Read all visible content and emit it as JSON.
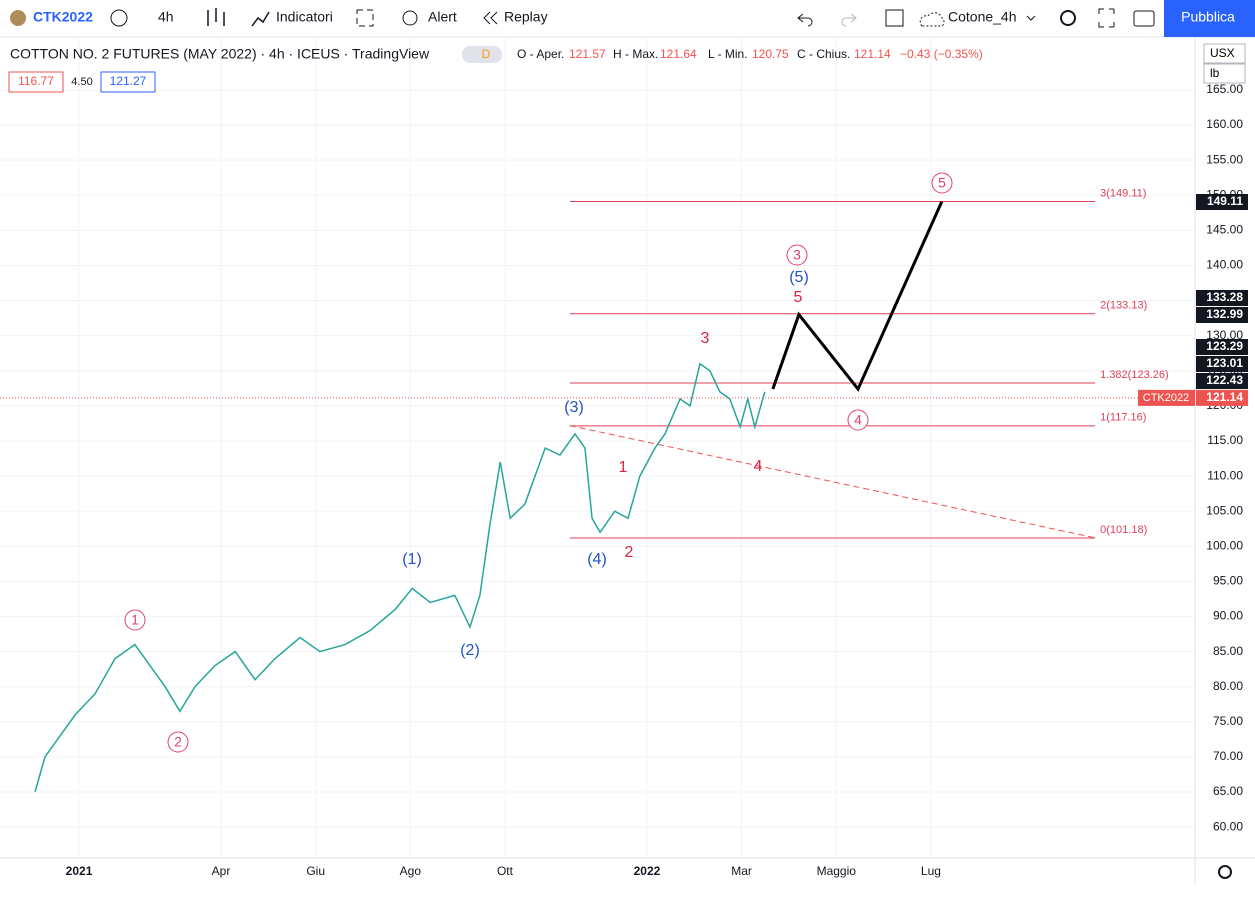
{
  "toolbar": {
    "symbol": "CTK2022",
    "interval": "4h",
    "indicators": "Indicatori",
    "alert": "Alert",
    "replay": "Replay",
    "layout": "Cotone_4h",
    "publish": "Pubblica"
  },
  "legend": {
    "title": "COTTON NO. 2 FUTURES (MAY 2022) · 4h · ICEUS · TradingView",
    "badge": "D",
    "open_label": "O - Aper.",
    "open": "121.57",
    "high_label": "H - Max.",
    "high": "121.64",
    "low_label": "L - Min.",
    "low": "120.75",
    "close_label": "C - Chius.",
    "close": "121.14",
    "change": "−0.43 (−0.35%)",
    "bid": "116.77",
    "spread": "4.50",
    "ask": "121.27"
  },
  "axis": {
    "currency": "USX",
    "unit": "lb",
    "symbol_tag": "CTK2022"
  },
  "chart": {
    "xlim": [
      -1.67,
      23.58
    ],
    "ylim": [
      55.6,
      172.4
    ],
    "xticks": [
      {
        "value": 0,
        "label": "2021"
      },
      {
        "value": 3,
        "label": "Apr"
      },
      {
        "value": 5,
        "label": "Giu"
      },
      {
        "value": 7,
        "label": "Ago"
      },
      {
        "value": 9,
        "label": "Ott"
      },
      {
        "value": 12,
        "label": "2022"
      },
      {
        "value": 14,
        "label": "Mar"
      },
      {
        "value": 16,
        "label": "Maggio"
      },
      {
        "value": 18,
        "label": "Lug"
      }
    ],
    "yticks": [
      {
        "value": 60,
        "label": "60.00"
      },
      {
        "value": 65,
        "label": "65.00"
      },
      {
        "value": 70,
        "label": "70.00"
      },
      {
        "value": 75,
        "label": "75.00"
      },
      {
        "value": 80,
        "label": "80.00"
      },
      {
        "value": 85,
        "label": "85.00"
      },
      {
        "value": 90,
        "label": "90.00"
      },
      {
        "value": 95,
        "label": "95.00"
      },
      {
        "value": 100,
        "label": "100.00"
      },
      {
        "value": 105,
        "label": "105.00"
      },
      {
        "value": 110,
        "label": "110.00"
      },
      {
        "value": 115,
        "label": "115.00"
      },
      {
        "value": 120,
        "label": "120.00"
      },
      {
        "value": 125,
        "label": "125.00"
      },
      {
        "value": 130,
        "label": "130.00"
      },
      {
        "value": 135,
        "label": "135.00"
      },
      {
        "value": 140,
        "label": "140.00"
      },
      {
        "value": 145,
        "label": "145.00"
      },
      {
        "value": 150,
        "label": "150.00"
      },
      {
        "value": 155,
        "label": "155.00"
      },
      {
        "value": 160,
        "label": "160.00"
      },
      {
        "value": 165,
        "label": "165.00"
      }
    ],
    "price": {
      "x": [
        -0.93,
        -0.72,
        -0.4,
        -0.08,
        0.34,
        0.76,
        1.18,
        1.5,
        1.82,
        2.13,
        2.45,
        2.87,
        3.3,
        3.72,
        4.14,
        4.67,
        5.09,
        5.62,
        6.15,
        6.68,
        7.04,
        7.42,
        7.94,
        8.26,
        8.47,
        8.68,
        8.9,
        9.11,
        9.42,
        9.85,
        10.16,
        10.48,
        10.69,
        10.84,
        11.01,
        11.32,
        11.6,
        11.85,
        12.17,
        12.38,
        12.7,
        12.91,
        13.12,
        13.33,
        13.54,
        13.75,
        13.97,
        14.13,
        14.28,
        14.49
      ],
      "values": [
        65,
        70,
        73,
        76,
        79,
        84,
        86,
        83,
        80,
        76.5,
        80,
        83,
        85,
        81,
        84,
        87,
        85,
        86,
        88,
        91,
        94,
        92,
        93,
        88.5,
        93,
        103,
        112,
        104,
        106,
        114,
        113,
        116,
        114,
        104,
        102,
        105,
        104,
        110,
        114,
        116,
        121,
        120,
        126,
        125,
        122,
        121,
        117,
        121,
        117,
        122
      ],
      "color": "#26a69a"
    },
    "projection": {
      "x": [
        14.66,
        15.21,
        16.46,
        18.23
      ],
      "values": [
        122.4,
        133,
        122.4,
        149.1
      ],
      "color": "#000000"
    },
    "fib": {
      "x": [
        10.37,
        21.47
      ],
      "values": [
        149.11,
        133.13,
        123.26,
        117.16,
        101.18
      ],
      "labels": [
        "3(149.11)",
        "2(133.13)",
        "1.382(123.26)",
        "1(117.16)",
        "0(101.18)"
      ],
      "color": "#e0405a"
    },
    "trendline": {
      "x": [
        10.37,
        21.47
      ],
      "values": [
        117.2,
        101.2
      ]
    },
    "last_price": 121.14,
    "badges": [
      149.11,
      133.28,
      132.99,
      123.29,
      123.01,
      122.43
    ]
  },
  "waves": {
    "circled": [
      "1",
      "2",
      "3",
      "4",
      "5"
    ],
    "intermediate": [
      "(1)",
      "(2)",
      "(3)",
      "(4)",
      "(5)"
    ],
    "minor": [
      "1",
      "2",
      "3",
      "4",
      "5"
    ]
  }
}
